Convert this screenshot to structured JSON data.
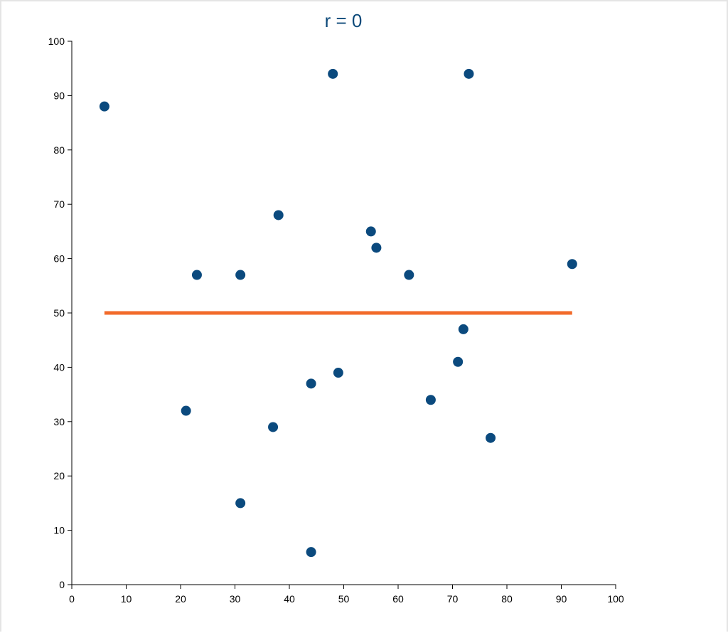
{
  "chart_data": {
    "type": "scatter",
    "title": "r = 0",
    "xlabel": "",
    "ylabel": "",
    "xlim": [
      0,
      100
    ],
    "ylim": [
      0,
      100
    ],
    "x_ticks": [
      0,
      10,
      20,
      30,
      40,
      50,
      60,
      70,
      80,
      90,
      100
    ],
    "y_ticks": [
      0,
      10,
      20,
      30,
      40,
      50,
      60,
      70,
      80,
      90,
      100
    ],
    "grid": false,
    "points": [
      {
        "x": 6,
        "y": 88
      },
      {
        "x": 48,
        "y": 94
      },
      {
        "x": 73,
        "y": 94
      },
      {
        "x": 38,
        "y": 68
      },
      {
        "x": 55,
        "y": 65
      },
      {
        "x": 56,
        "y": 62
      },
      {
        "x": 23,
        "y": 57
      },
      {
        "x": 31,
        "y": 57
      },
      {
        "x": 62,
        "y": 57
      },
      {
        "x": 92,
        "y": 59
      },
      {
        "x": 72,
        "y": 47
      },
      {
        "x": 71,
        "y": 41
      },
      {
        "x": 49,
        "y": 39
      },
      {
        "x": 44,
        "y": 37
      },
      {
        "x": 66,
        "y": 34
      },
      {
        "x": 21,
        "y": 32
      },
      {
        "x": 37,
        "y": 29
      },
      {
        "x": 77,
        "y": 27
      },
      {
        "x": 31,
        "y": 15
      },
      {
        "x": 44,
        "y": 6
      }
    ],
    "trend_line": {
      "x_start": 6,
      "x_end": 92,
      "y": 50
    },
    "colors": {
      "points": "#0b4a7e",
      "trend_line": "#f26a2a",
      "title": "#0d4a7a"
    }
  }
}
